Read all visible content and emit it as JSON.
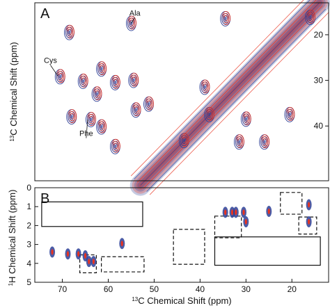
{
  "chart_data": [
    {
      "panel": "A",
      "type": "heatmap",
      "title": "",
      "ylabel_sup": "13",
      "ylabel": "C Chemical Shift (ppm)",
      "xlim": [
        76,
        12
      ],
      "ylim": [
        13,
        52
      ],
      "yticks": [
        20,
        30,
        40
      ],
      "colors": {
        "spectrum_1": "#e8321f",
        "spectrum_2": "#2d3f96"
      },
      "annotations": [
        {
          "text": "Ala",
          "x": 55,
          "y": 17.5,
          "tx": 54.2,
          "ty": 15.8
        },
        {
          "text": "Cys",
          "x": 71,
          "y": 29,
          "tx": 72.6,
          "ty": 26.2
        },
        {
          "text": "Phe",
          "x": 64.5,
          "y": 38.6,
          "tx": 64.8,
          "ty": 42.2
        }
      ],
      "diagonal_ridge": {
        "from": [
          53,
          53
        ],
        "to": [
          14,
          13
        ]
      },
      "peaks": [
        {
          "x": 68.5,
          "y": 19.5
        },
        {
          "x": 70.5,
          "y": 29.2
        },
        {
          "x": 65.5,
          "y": 30.2
        },
        {
          "x": 61.5,
          "y": 27.5
        },
        {
          "x": 58.5,
          "y": 30.5
        },
        {
          "x": 62.5,
          "y": 33
        },
        {
          "x": 55,
          "y": 17.5
        },
        {
          "x": 54.5,
          "y": 30
        },
        {
          "x": 51.2,
          "y": 35.2
        },
        {
          "x": 68,
          "y": 38
        },
        {
          "x": 63.8,
          "y": 38.6
        },
        {
          "x": 61.5,
          "y": 40.2
        },
        {
          "x": 58.5,
          "y": 44.5
        },
        {
          "x": 54,
          "y": 36.5
        },
        {
          "x": 34.5,
          "y": 16.5
        },
        {
          "x": 39,
          "y": 31.5
        },
        {
          "x": 30,
          "y": 38.5
        },
        {
          "x": 31.5,
          "y": 43.5
        },
        {
          "x": 43.5,
          "y": 43.2
        },
        {
          "x": 26,
          "y": 43.5
        },
        {
          "x": 20.5,
          "y": 37.5
        },
        {
          "x": 16,
          "y": 16.2
        },
        {
          "x": 38,
          "y": 37.5
        }
      ]
    },
    {
      "panel": "B",
      "type": "heatmap",
      "title": "",
      "xlabel_sup": "13",
      "xlabel": "C Chemical Shift (ppm)",
      "ylabel_sup": "1",
      "ylabel": "H Chemical Shift (ppm)",
      "xlim": [
        76,
        12
      ],
      "ylim": [
        0,
        5
      ],
      "xticks": [
        70,
        60,
        50,
        40,
        30,
        20
      ],
      "x_tick_labels": [
        "70",
        "60",
        "50",
        "40",
        "30",
        "20"
      ],
      "yticks": [
        0,
        1,
        2,
        3,
        4,
        5
      ],
      "y_tick_labels": [
        "0",
        "1",
        "2",
        "3",
        "4",
        "5"
      ],
      "colors": {
        "spectrum_1": "#e8321f",
        "spectrum_2": "#2d3f96"
      },
      "peaks": [
        {
          "x": 72.2,
          "y": 3.4
        },
        {
          "x": 68.8,
          "y": 3.5
        },
        {
          "x": 66.5,
          "y": 3.5
        },
        {
          "x": 65.0,
          "y": 3.6
        },
        {
          "x": 64.2,
          "y": 3.9
        },
        {
          "x": 63.2,
          "y": 3.9
        },
        {
          "x": 57.0,
          "y": 2.95
        },
        {
          "x": 34.5,
          "y": 1.3
        },
        {
          "x": 33.0,
          "y": 1.3
        },
        {
          "x": 32.2,
          "y": 1.3
        },
        {
          "x": 30.5,
          "y": 1.3
        },
        {
          "x": 30.0,
          "y": 1.8
        },
        {
          "x": 25.0,
          "y": 1.25
        },
        {
          "x": 16.3,
          "y": 0.9
        },
        {
          "x": 16.3,
          "y": 1.8
        }
      ],
      "boxes": [
        {
          "style": "solid",
          "x1": 74.5,
          "x2": 52.5,
          "y1": 0.75,
          "y2": 2.05
        },
        {
          "style": "solid",
          "x1": 36.8,
          "x2": 13.8,
          "y1": 2.6,
          "y2": 4.1
        },
        {
          "style": "dashed",
          "x1": 45.8,
          "x2": 39.0,
          "y1": 2.2,
          "y2": 4.05
        },
        {
          "style": "dashed",
          "x1": 36.8,
          "x2": 31.0,
          "y1": 1.5,
          "y2": 2.65
        },
        {
          "style": "dashed",
          "x1": 22.5,
          "x2": 17.8,
          "y1": 0.25,
          "y2": 1.4
        },
        {
          "style": "dashed",
          "x1": 18.5,
          "x2": 14.6,
          "y1": 1.55,
          "y2": 2.45
        },
        {
          "style": "dashed",
          "x1": 66.2,
          "x2": 62.6,
          "y1": 3.55,
          "y2": 4.5
        },
        {
          "style": "dashed",
          "x1": 61.5,
          "x2": 52.2,
          "y1": 3.65,
          "y2": 4.45
        }
      ]
    }
  ]
}
